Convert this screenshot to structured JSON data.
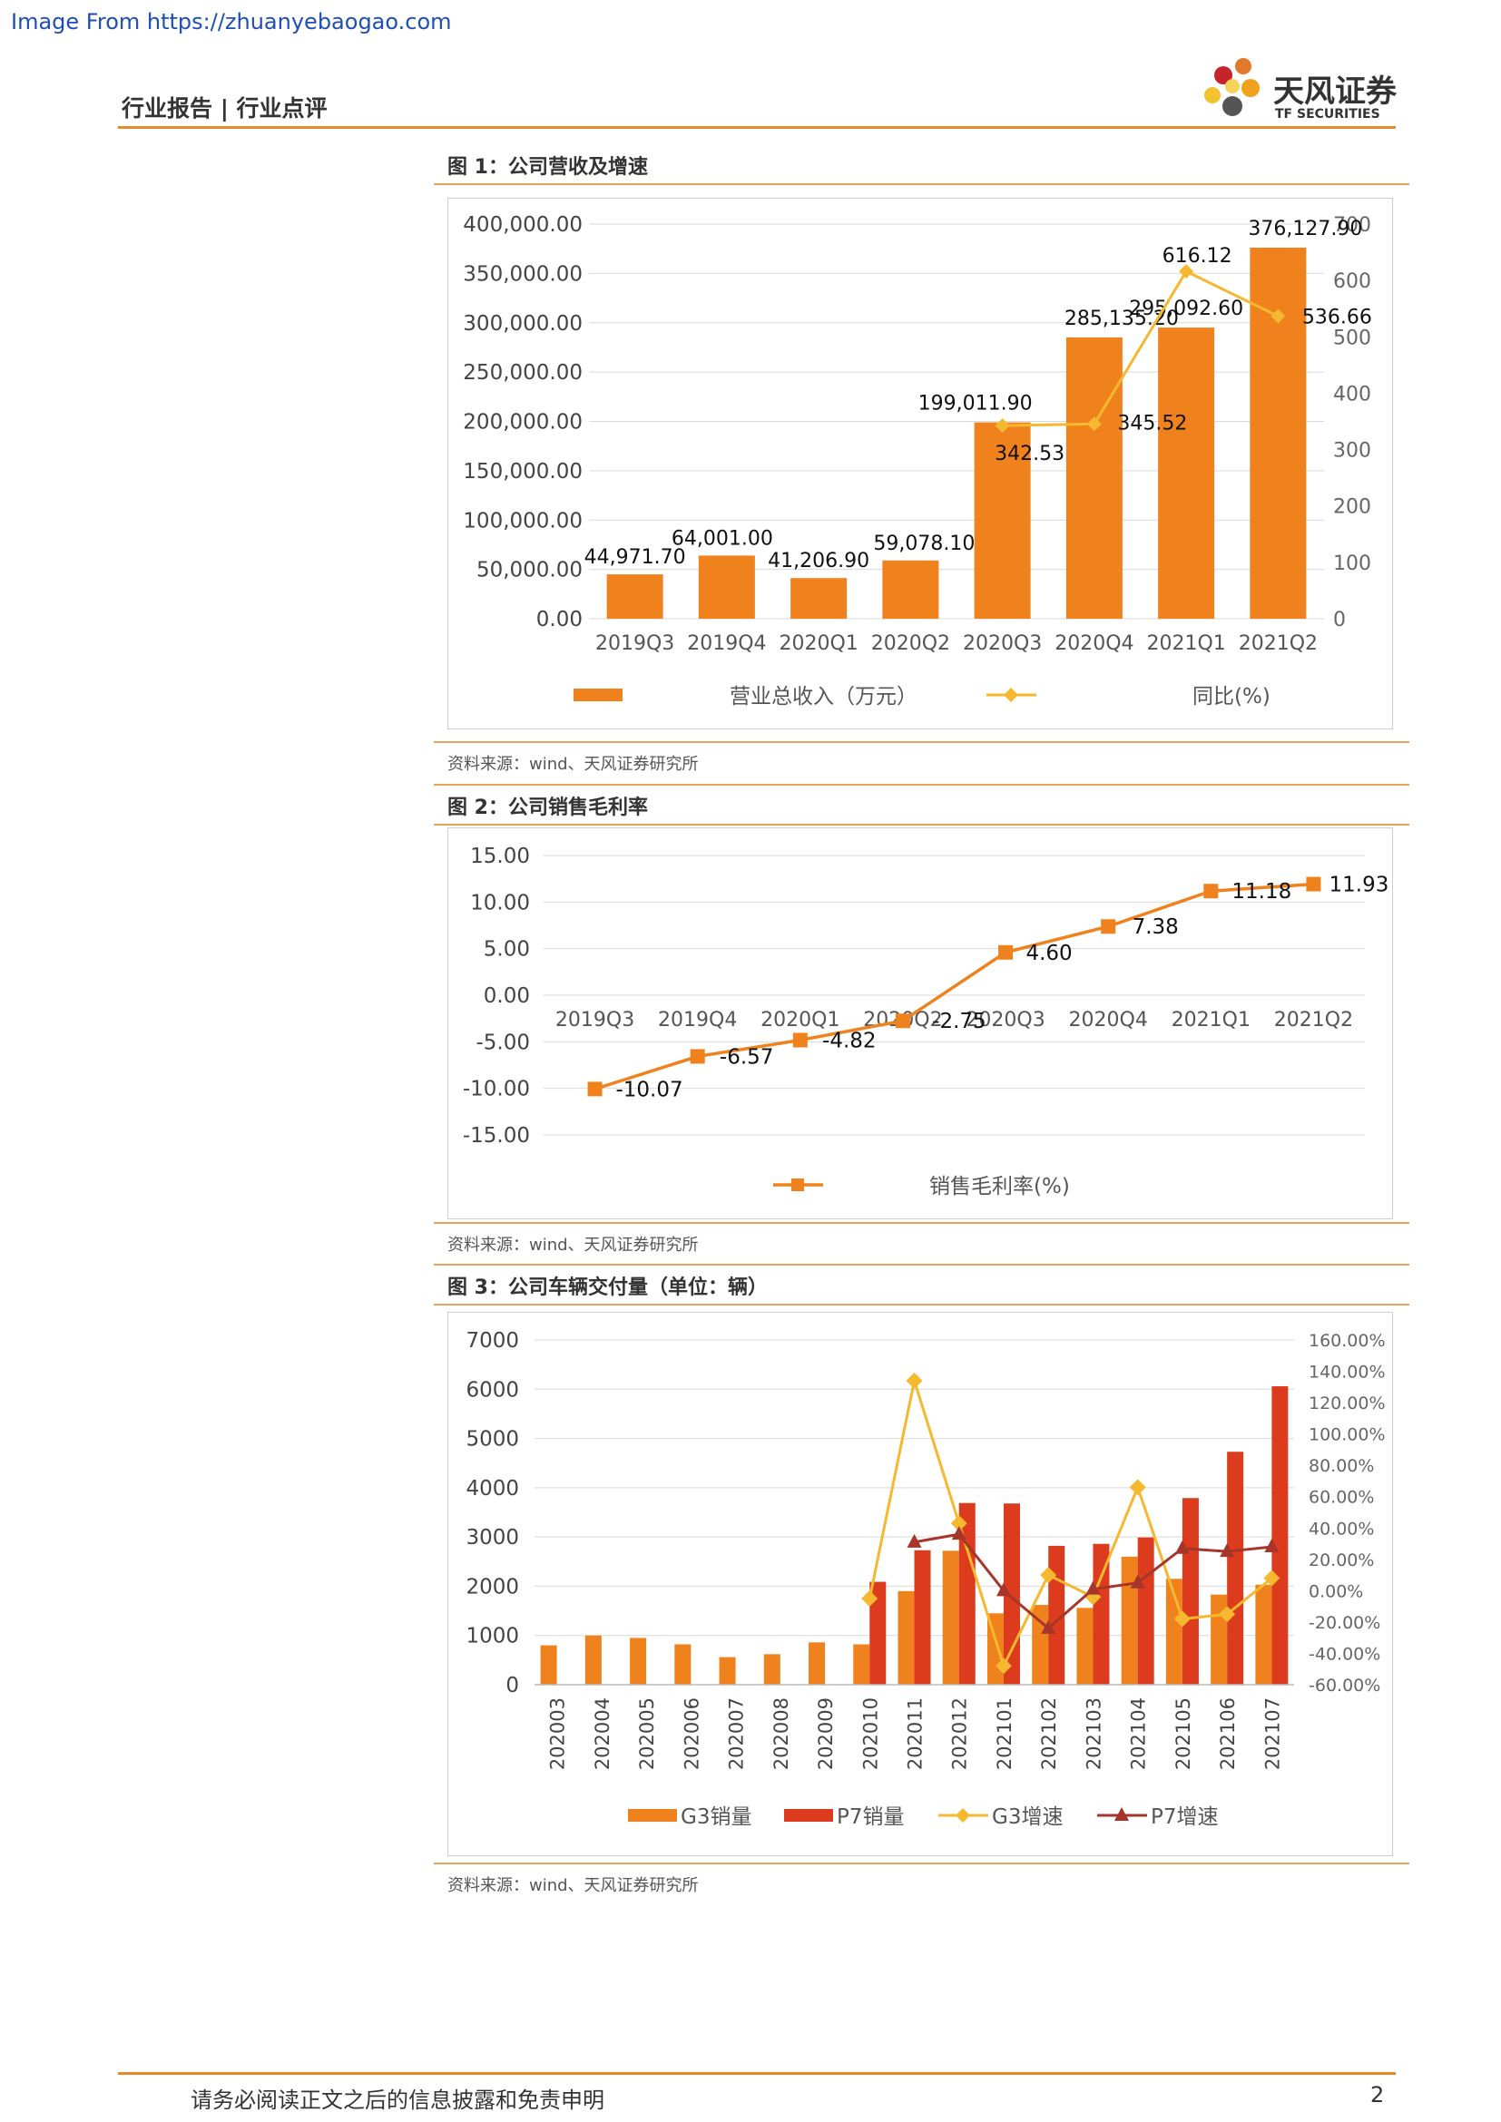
{
  "watermark": "Image From https://zhuanyebaogao.com",
  "header": {
    "title": "行业报告 | 行业点评"
  },
  "logo": {
    "name_cn": "天风证券",
    "name_en": "TF SECURITIES"
  },
  "figures": [
    {
      "title": "图 1：公司营收及增速",
      "source": "资料来源：wind、天风证券研究所"
    },
    {
      "title": "图 2：公司销售毛利率",
      "source": "资料来源：wind、天风证券研究所"
    },
    {
      "title": "图 3：公司车辆交付量（单位：辆）",
      "source": "资料来源：wind、天风证券研究所"
    }
  ],
  "footer": {
    "disclaimer": "请务必阅读正文之后的信息披露和免责申明",
    "page": "2"
  },
  "colors": {
    "accent": "#e88a2a",
    "bar_orange": "#f0821e",
    "line_yellow": "#f5b82e",
    "bar_red": "#dc3b1d",
    "line_darkred": "#a7352a"
  },
  "chart_data": [
    {
      "type": "bar",
      "categories": [
        "2019Q3",
        "2019Q4",
        "2020Q1",
        "2020Q2",
        "2020Q3",
        "2020Q4",
        "2021Q1",
        "2021Q2"
      ],
      "series": [
        {
          "name": "营业总收入（万元）",
          "type": "bar",
          "axis": "left",
          "values": [
            44971.7,
            64001.0,
            41206.9,
            59078.1,
            199011.9,
            285135.2,
            295092.6,
            376127.9
          ],
          "labels": [
            "44,971.70",
            "64,001.00",
            "41,206.90",
            "59,078.10",
            "199,011.90",
            "285,135.20",
            "295,092.60",
            "376,127.90"
          ]
        },
        {
          "name": "同比(%)",
          "type": "line",
          "axis": "right",
          "x": [
            "2020Q3",
            "2020Q4",
            "2021Q1",
            "2021Q2"
          ],
          "values": [
            342.53,
            345.52,
            616.12,
            536.66
          ],
          "labels": [
            "342.53",
            "345.52",
            "616.12",
            "536.66"
          ]
        }
      ],
      "ylim_left": [
        0,
        400000
      ],
      "ylim_right": [
        0,
        700
      ],
      "yticks_left": [
        "0.00",
        "50,000.00",
        "100,000.00",
        "150,000.00",
        "200,000.00",
        "250,000.00",
        "300,000.00",
        "350,000.00",
        "400,000.00"
      ],
      "yticks_right": [
        "0",
        "100",
        "200",
        "300",
        "400",
        "500",
        "600",
        "700"
      ],
      "legend": "bottom",
      "grid": true
    },
    {
      "type": "line",
      "categories": [
        "2019Q3",
        "2019Q4",
        "2020Q1",
        "2020Q2",
        "2020Q3",
        "2020Q4",
        "2021Q1",
        "2021Q2"
      ],
      "series": [
        {
          "name": "销售毛利率(%)",
          "values": [
            -10.07,
            -6.57,
            -4.82,
            -2.75,
            4.6,
            7.38,
            11.18,
            11.93
          ],
          "labels": [
            "-10.07",
            "-6.57",
            "-4.82",
            "-2.75",
            "4.60",
            "7.38",
            "11.18",
            "11.93"
          ]
        }
      ],
      "ylim": [
        -15,
        15
      ],
      "yticks": [
        "-15.00",
        "-10.00",
        "-5.00",
        "0.00",
        "5.00",
        "10.00",
        "15.00"
      ],
      "legend": "bottom",
      "grid": true
    },
    {
      "type": "bar",
      "categories": [
        "202003",
        "202004",
        "202005",
        "202006",
        "202007",
        "202008",
        "202009",
        "202010",
        "202011",
        "202012",
        "202101",
        "202102",
        "202103",
        "202104",
        "202105",
        "202106",
        "202107"
      ],
      "series": [
        {
          "name": "G3销量",
          "type": "bar",
          "axis": "left",
          "values": [
            800,
            1000,
            950,
            820,
            560,
            620,
            860,
            820,
            1900,
            2720,
            1450,
            1620,
            1560,
            2600,
            2150,
            1830,
            2030
          ]
        },
        {
          "name": "P7销量",
          "type": "bar",
          "axis": "left",
          "values": [
            null,
            null,
            null,
            null,
            null,
            null,
            null,
            2090,
            2730,
            3690,
            3680,
            2820,
            2860,
            2990,
            3790,
            4730,
            6060
          ]
        },
        {
          "name": "G3增速",
          "type": "line",
          "axis": "right",
          "values": [
            null,
            null,
            null,
            null,
            null,
            null,
            null,
            -5.0,
            134.0,
            43.0,
            -48.0,
            10.0,
            -4.0,
            66.0,
            -18.0,
            -15.0,
            8.0
          ]
        },
        {
          "name": "P7增速",
          "type": "line",
          "axis": "right",
          "values": [
            null,
            null,
            null,
            null,
            null,
            null,
            null,
            null,
            31.0,
            36.0,
            0.0,
            -24.0,
            1.0,
            5.0,
            27.0,
            25.0,
            28.0
          ]
        }
      ],
      "ylim_left": [
        0,
        7000
      ],
      "ylim_right": [
        -60,
        160
      ],
      "yticks_left": [
        "0",
        "1000",
        "2000",
        "3000",
        "4000",
        "5000",
        "6000",
        "7000"
      ],
      "yticks_right": [
        "-60.00%",
        "-40.00%",
        "-20.00%",
        "0.00%",
        "20.00%",
        "40.00%",
        "60.00%",
        "80.00%",
        "100.00%",
        "120.00%",
        "140.00%",
        "160.00%"
      ],
      "legend": "bottom",
      "grid": true
    }
  ]
}
